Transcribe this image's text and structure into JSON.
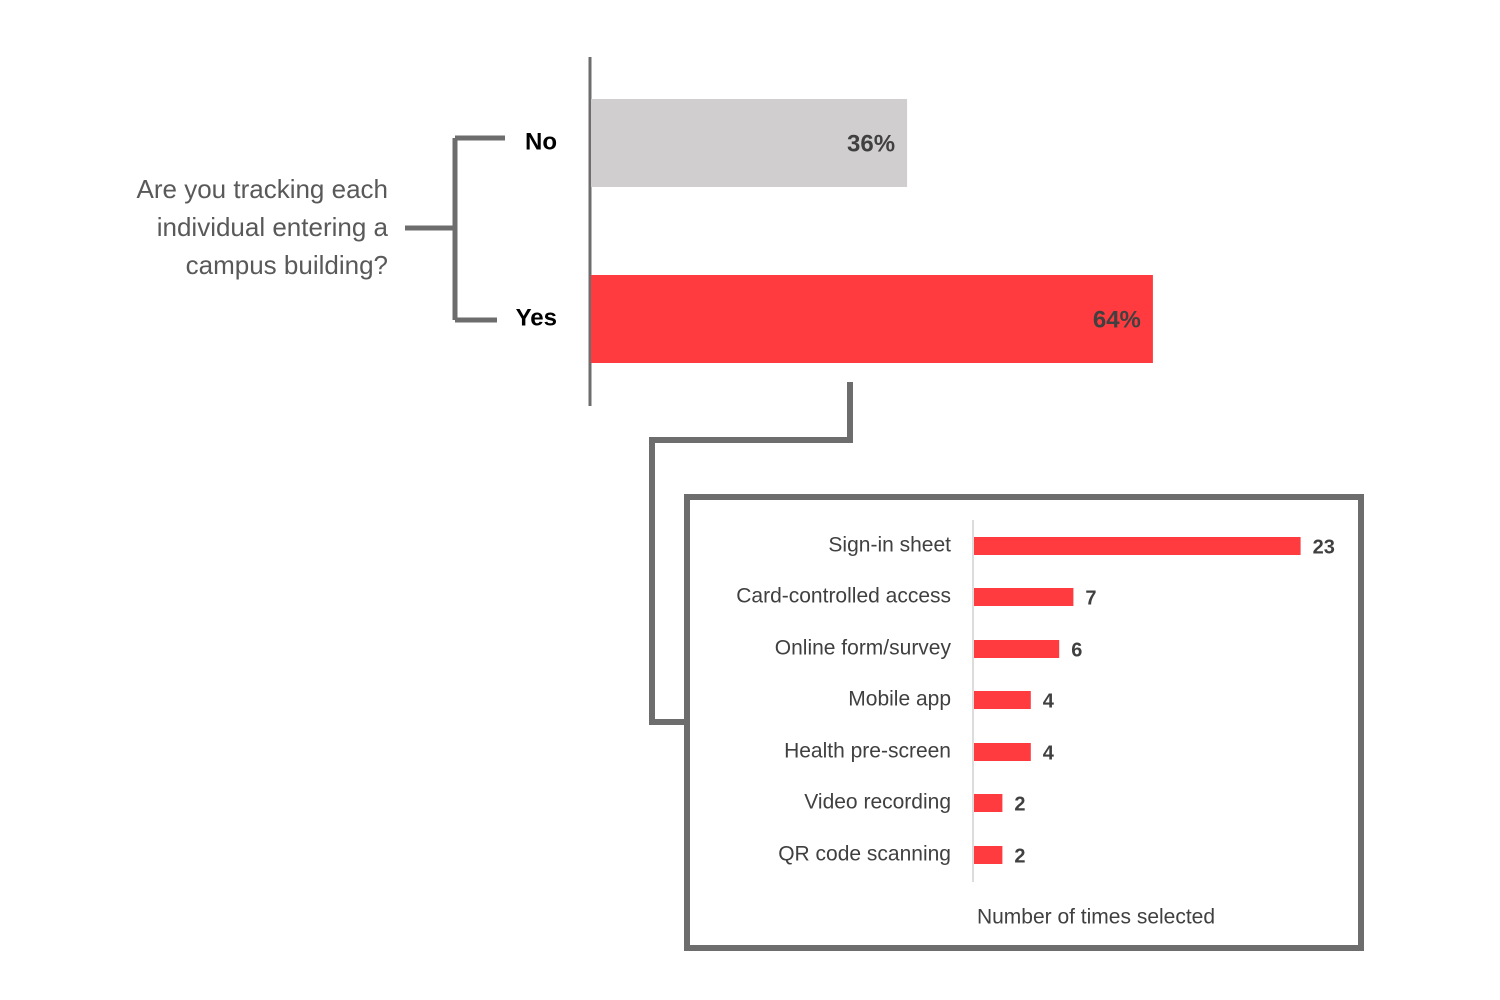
{
  "chart_data": [
    {
      "type": "bar",
      "orientation": "horizontal",
      "title": "Are you tracking each individual entering a campus building?",
      "categories": [
        "No",
        "Yes"
      ],
      "values": [
        36,
        64
      ],
      "value_labels": [
        "36%",
        "64%"
      ],
      "colors": [
        "#d0cecf",
        "#ff3b3f"
      ]
    },
    {
      "type": "bar",
      "orientation": "horizontal",
      "categories": [
        "Sign-in sheet",
        "Card-controlled access",
        "Online form/survey",
        "Mobile app",
        "Health pre-screen",
        "Video recording",
        "QR code scanning"
      ],
      "values": [
        23,
        7,
        6,
        4,
        4,
        2,
        2
      ],
      "color": "#ff3b3f",
      "x_label": "Number of times selected"
    }
  ]
}
